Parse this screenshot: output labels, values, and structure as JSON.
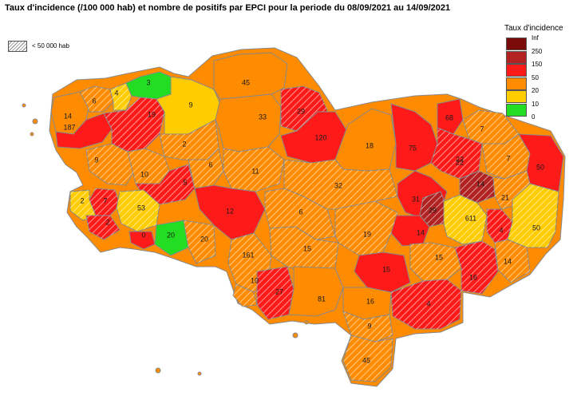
{
  "title": "Taux d'incidence (/100 000 hab) et nombre de positifs par EPCI pour la periode du 08/09/2021 au 14/09/2021",
  "small_epci_label": "< 50 000 hab",
  "legend": {
    "title": "Taux d'incidence",
    "items": [
      {
        "label": "Inf",
        "color": "#7b0a0a"
      },
      {
        "label": "250",
        "color": "#b22222"
      },
      {
        "label": "150",
        "color": "#ff1a1a"
      },
      {
        "label": "50",
        "color": "#ff8c00"
      },
      {
        "label": "20",
        "color": "#ffcc00"
      },
      {
        "label": "10",
        "color": "#22dd22"
      },
      {
        "label": "0",
        "color": ""
      }
    ]
  },
  "epci_counts": [
    {
      "value": "3",
      "color": "#22dd22",
      "hatched": false
    },
    {
      "value": "6",
      "color": "#ff8c00",
      "hatched": true
    },
    {
      "value": "4",
      "color": "#ffcc00",
      "hatched": true
    },
    {
      "value": "9",
      "color": "#ffcc00",
      "hatched": false
    },
    {
      "value": "45",
      "color": "#ff8c00",
      "hatched": false
    },
    {
      "value": "14",
      "color": "#ff8c00",
      "hatched": false
    },
    {
      "value": "187",
      "color": "#ff1a1a",
      "hatched": false
    },
    {
      "value": "19",
      "color": "#ff1a1a",
      "hatched": true
    },
    {
      "value": "33",
      "color": "#ff8c00",
      "hatched": false
    },
    {
      "value": "29",
      "color": "#ff1a1a",
      "hatched": true
    },
    {
      "value": "68",
      "color": "#ff1a1a",
      "hatched": false
    },
    {
      "value": "7",
      "color": "#ff8c00",
      "hatched": true
    },
    {
      "value": "9",
      "color": "#ff8c00",
      "hatched": true
    },
    {
      "value": "22",
      "color": "#ff8c00",
      "hatched": true
    },
    {
      "value": "2",
      "color": "#ff8c00",
      "hatched": true
    },
    {
      "value": "120",
      "color": "#ff1a1a",
      "hatched": false
    },
    {
      "value": "18",
      "color": "#ff8c00",
      "hatched": false
    },
    {
      "value": "75",
      "color": "#ff1a1a",
      "hatched": false
    },
    {
      "value": "22",
      "color": "#ff1a1a",
      "hatched": true
    },
    {
      "value": "7",
      "color": "#ff8c00",
      "hatched": true
    },
    {
      "value": "50",
      "color": "#ff1a1a",
      "hatched": false
    },
    {
      "value": "6",
      "color": "#ff8c00",
      "hatched": true
    },
    {
      "value": "10",
      "color": "#ff8c00",
      "hatched": true
    },
    {
      "value": "11",
      "color": "#ff1a1a",
      "hatched": true
    },
    {
      "value": "5",
      "color": "#ff8c00",
      "hatched": true
    },
    {
      "value": "32",
      "color": "#ff1a1a",
      "hatched": false
    },
    {
      "value": "31",
      "color": "#b22222",
      "hatched": true
    },
    {
      "value": "14",
      "color": "#ff8c00",
      "hatched": true
    },
    {
      "value": "21",
      "color": "#ff1a1a",
      "hatched": true
    },
    {
      "value": "7",
      "color": "#ffcc00",
      "hatched": true
    },
    {
      "value": "2",
      "color": "#ffcc00",
      "hatched": true
    },
    {
      "value": "53",
      "color": "#ff1a1a",
      "hatched": false
    },
    {
      "value": "12",
      "color": "#ff8c00",
      "hatched": true
    },
    {
      "value": "6",
      "color": "#b22222",
      "hatched": true
    },
    {
      "value": "29",
      "color": "#ff1a1a",
      "hatched": true
    },
    {
      "value": "2",
      "color": "#ffcc00",
      "hatched": true
    },
    {
      "value": "611",
      "color": "#ff1a1a",
      "hatched": false
    },
    {
      "value": "14",
      "color": "#ff1a1a",
      "hatched": true
    },
    {
      "value": "4",
      "color": "#ffcc00",
      "hatched": true
    },
    {
      "value": "50",
      "color": "#ff1a1a",
      "hatched": false
    },
    {
      "value": "0",
      "color": "#22dd22",
      "hatched": false
    },
    {
      "value": "20",
      "color": "#ff8c00",
      "hatched": true
    },
    {
      "value": "20",
      "color": "#ff8c00",
      "hatched": true
    },
    {
      "value": "19",
      "color": "#ff8c00",
      "hatched": true
    },
    {
      "value": "15",
      "color": "#ff8c00",
      "hatched": true
    },
    {
      "value": "161",
      "color": "#ff1a1a",
      "hatched": false
    },
    {
      "value": "15",
      "color": "#ff8c00",
      "hatched": true
    },
    {
      "value": "15",
      "color": "#ff8c00",
      "hatched": true
    },
    {
      "value": "14",
      "color": "#ff1a1a",
      "hatched": true
    },
    {
      "value": "16",
      "color": "#ff8c00",
      "hatched": true
    },
    {
      "value": "10",
      "color": "#ff1a1a",
      "hatched": true
    },
    {
      "value": "27",
      "color": "#ff8c00",
      "hatched": false
    },
    {
      "value": "81",
      "color": "#ff8c00",
      "hatched": false
    },
    {
      "value": "16",
      "color": "#ff1a1a",
      "hatched": true
    },
    {
      "value": "4",
      "color": "#ff8c00",
      "hatched": true
    },
    {
      "value": "9",
      "color": "#ff8c00",
      "hatched": true
    },
    {
      "value": "45",
      "color": "#ff1a1a",
      "hatched": false
    }
  ]
}
